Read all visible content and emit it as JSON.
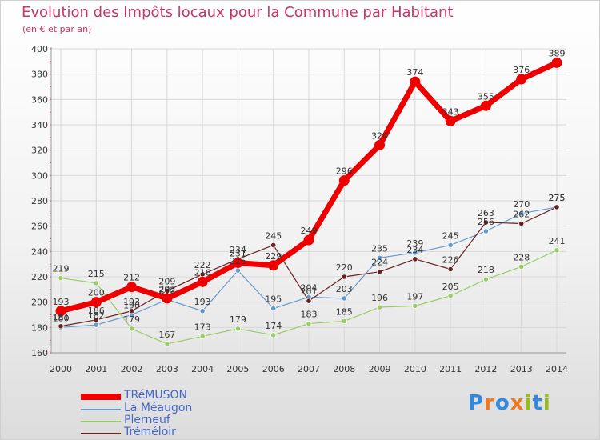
{
  "chart_data": {
    "type": "line",
    "title": "Evolution des Impôts locaux pour la Commune par Habitant",
    "subtitle": "(en € et par an)",
    "xlabel": "",
    "ylabel": "",
    "x": [
      "2000",
      "2001",
      "2002",
      "2003",
      "2004",
      "2005",
      "2006",
      "2007",
      "2008",
      "2009",
      "2010",
      "2011",
      "2012",
      "2013",
      "2014"
    ],
    "ylim": [
      160,
      400
    ],
    "yticks": [
      160,
      180,
      200,
      220,
      240,
      260,
      280,
      300,
      320,
      340,
      360,
      380,
      400
    ],
    "grid": true,
    "legend_position": "bottom-left",
    "series": [
      {
        "name": "TRéMUSON",
        "color": "#ee0000",
        "emphasis": "thick",
        "values": [
          193,
          200,
          212,
          203,
          216,
          231,
          229,
          249,
          296,
          324,
          374,
          343,
          355,
          376,
          389
        ]
      },
      {
        "name": "La Méaugon",
        "color": "#6699cc",
        "emphasis": "thin",
        "values": [
          180,
          182,
          190,
          202,
          193,
          225,
          195,
          204,
          203,
          235,
          239,
          245,
          256,
          270,
          275
        ]
      },
      {
        "name": "Plerneuf",
        "color": "#99cc66",
        "emphasis": "thin",
        "values": [
          219,
          215,
          179,
          167,
          173,
          179,
          174,
          183,
          185,
          196,
          197,
          205,
          218,
          228,
          241
        ]
      },
      {
        "name": "Tréméloir",
        "color": "#662222",
        "emphasis": "thin",
        "values": [
          181,
          186,
          193,
          209,
          222,
          234,
          245,
          201,
          220,
          224,
          234,
          226,
          263,
          262,
          275
        ]
      }
    ],
    "data_labels": [
      {
        "x": "2000",
        "text": "219",
        "value": 219
      },
      {
        "x": "2000",
        "text": "193",
        "value": 193
      },
      {
        "x": "2000",
        "text": "180",
        "value": 180
      },
      {
        "x": "2000",
        "text": "181",
        "value": 181
      },
      {
        "x": "2001",
        "text": "215",
        "value": 215
      },
      {
        "x": "2001",
        "text": "200",
        "value": 200
      },
      {
        "x": "2001",
        "text": "186",
        "value": 186
      },
      {
        "x": "2001",
        "text": "182",
        "value": 182
      },
      {
        "x": "2002",
        "text": "212",
        "value": 212
      },
      {
        "x": "2002",
        "text": "193",
        "value": 193
      },
      {
        "x": "2002",
        "text": "190",
        "value": 190
      },
      {
        "x": "2002",
        "text": "179",
        "value": 179
      },
      {
        "x": "2003",
        "text": "209",
        "value": 209
      },
      {
        "x": "2003",
        "text": "203",
        "value": 203
      },
      {
        "x": "2003",
        "text": "202",
        "value": 202
      },
      {
        "x": "2003",
        "text": "167",
        "value": 167
      },
      {
        "x": "2004",
        "text": "222",
        "value": 222
      },
      {
        "x": "2004",
        "text": "216",
        "value": 216
      },
      {
        "x": "2004",
        "text": "193",
        "value": 193
      },
      {
        "x": "2004",
        "text": "173",
        "value": 173
      },
      {
        "x": "2005",
        "text": "234",
        "value": 234
      },
      {
        "x": "2005",
        "text": "231",
        "value": 231
      },
      {
        "x": "2005",
        "text": "225",
        "value": 225
      },
      {
        "x": "2005",
        "text": "179",
        "value": 179
      },
      {
        "x": "2006",
        "text": "245",
        "value": 245
      },
      {
        "x": "2006",
        "text": "229",
        "value": 229
      },
      {
        "x": "2006",
        "text": "195",
        "value": 195
      },
      {
        "x": "2006",
        "text": "174",
        "value": 174
      },
      {
        "x": "2007",
        "text": "249",
        "value": 249
      },
      {
        "x": "2007",
        "text": "204",
        "value": 204
      },
      {
        "x": "2007",
        "text": "201",
        "value": 201
      },
      {
        "x": "2007",
        "text": "183",
        "value": 183
      },
      {
        "x": "2008",
        "text": "296",
        "value": 296
      },
      {
        "x": "2008",
        "text": "220",
        "value": 220
      },
      {
        "x": "2008",
        "text": "203",
        "value": 203
      },
      {
        "x": "2008",
        "text": "185",
        "value": 185
      },
      {
        "x": "2009",
        "text": "324",
        "value": 324
      },
      {
        "x": "2009",
        "text": "235",
        "value": 235
      },
      {
        "x": "2009",
        "text": "224",
        "value": 224
      },
      {
        "x": "2009",
        "text": "196",
        "value": 196
      },
      {
        "x": "2010",
        "text": "374",
        "value": 374
      },
      {
        "x": "2010",
        "text": "239",
        "value": 239
      },
      {
        "x": "2010",
        "text": "234",
        "value": 234
      },
      {
        "x": "2010",
        "text": "197",
        "value": 197
      },
      {
        "x": "2011",
        "text": "343",
        "value": 343
      },
      {
        "x": "2011",
        "text": "245",
        "value": 245
      },
      {
        "x": "2011",
        "text": "226",
        "value": 226
      },
      {
        "x": "2011",
        "text": "205",
        "value": 205
      },
      {
        "x": "2012",
        "text": "355",
        "value": 355
      },
      {
        "x": "2012",
        "text": "263",
        "value": 263
      },
      {
        "x": "2012",
        "text": "256",
        "value": 256
      },
      {
        "x": "2012",
        "text": "218",
        "value": 218
      },
      {
        "x": "2013",
        "text": "376",
        "value": 376
      },
      {
        "x": "2013",
        "text": "270",
        "value": 270
      },
      {
        "x": "2013",
        "text": "262",
        "value": 262
      },
      {
        "x": "2013",
        "text": "228",
        "value": 228
      },
      {
        "x": "2014",
        "text": "389",
        "value": 389
      },
      {
        "x": "2014",
        "text": "275",
        "value": 275
      },
      {
        "x": "2014",
        "text": "275",
        "value": 275
      },
      {
        "x": "2014",
        "text": "241",
        "value": 241
      }
    ]
  },
  "logo": {
    "text": "Proxiti",
    "letters": [
      {
        "char": "P",
        "color": "#3388dd"
      },
      {
        "char": "r",
        "color": "#ee7722"
      },
      {
        "char": "o",
        "color": "#3388dd"
      },
      {
        "char": "x",
        "color": "#ee7722"
      },
      {
        "char": "i",
        "color": "#99bb22"
      },
      {
        "char": "t",
        "color": "#3388dd"
      },
      {
        "char": "i",
        "color": "#99bb22"
      }
    ]
  },
  "colors": {
    "title": "#cc3366",
    "axis_text": "#333333",
    "grid": "#d8d8d8",
    "legend_text": "#4466cc",
    "tick_marks": "#cc3366"
  }
}
